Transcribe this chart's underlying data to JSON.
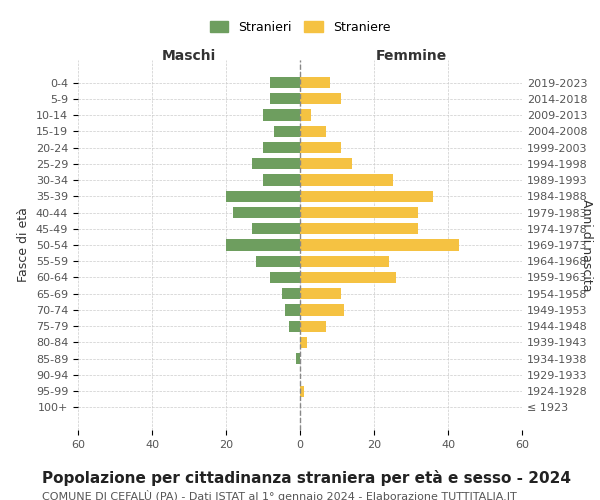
{
  "age_groups": [
    "100+",
    "95-99",
    "90-94",
    "85-89",
    "80-84",
    "75-79",
    "70-74",
    "65-69",
    "60-64",
    "55-59",
    "50-54",
    "45-49",
    "40-44",
    "35-39",
    "30-34",
    "25-29",
    "20-24",
    "15-19",
    "10-14",
    "5-9",
    "0-4"
  ],
  "birth_years": [
    "≤ 1923",
    "1924-1928",
    "1929-1933",
    "1934-1938",
    "1939-1943",
    "1944-1948",
    "1949-1953",
    "1954-1958",
    "1959-1963",
    "1964-1968",
    "1969-1973",
    "1974-1978",
    "1979-1983",
    "1984-1988",
    "1989-1993",
    "1994-1998",
    "1999-2003",
    "2004-2008",
    "2009-2013",
    "2014-2018",
    "2019-2023"
  ],
  "maschi": [
    0,
    0,
    0,
    1,
    0,
    3,
    4,
    5,
    8,
    12,
    20,
    13,
    18,
    20,
    10,
    13,
    10,
    7,
    10,
    8,
    8
  ],
  "femmine": [
    0,
    1,
    0,
    0,
    2,
    7,
    12,
    11,
    26,
    24,
    43,
    32,
    32,
    36,
    25,
    14,
    11,
    7,
    3,
    11,
    8
  ],
  "male_color": "#6e9e5f",
  "female_color": "#f5c242",
  "background_color": "#ffffff",
  "grid_color": "#cccccc",
  "title": "Popolazione per cittadinanza straniera per età e sesso - 2024",
  "subtitle": "COMUNE DI CEFALÙ (PA) - Dati ISTAT al 1° gennaio 2024 - Elaborazione TUTTITALIA.IT",
  "xlabel_left": "Maschi",
  "xlabel_right": "Femmine",
  "ylabel_left": "Fasce di età",
  "ylabel_right": "Anni di nascita",
  "legend_male": "Stranieri",
  "legend_female": "Straniere",
  "xlim": 60,
  "title_fontsize": 11,
  "subtitle_fontsize": 8
}
